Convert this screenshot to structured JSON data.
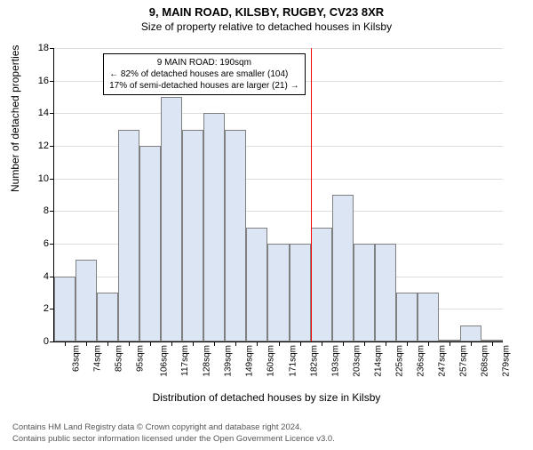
{
  "chart": {
    "type": "histogram",
    "title": "9, MAIN ROAD, KILSBY, RUGBY, CV23 8XR",
    "subtitle": "Size of property relative to detached houses in Kilsby",
    "xlabel": "Distribution of detached houses by size in Kilsby",
    "ylabel": "Number of detached properties",
    "ylim": [
      0,
      18
    ],
    "ytick_step": 2,
    "yticks": [
      0,
      2,
      4,
      6,
      8,
      10,
      12,
      14,
      16,
      18
    ],
    "categories": [
      "63sqm",
      "74sqm",
      "85sqm",
      "95sqm",
      "106sqm",
      "117sqm",
      "128sqm",
      "139sqm",
      "149sqm",
      "160sqm",
      "171sqm",
      "182sqm",
      "193sqm",
      "203sqm",
      "214sqm",
      "225sqm",
      "236sqm",
      "247sqm",
      "257sqm",
      "268sqm",
      "279sqm"
    ],
    "values": [
      4,
      5,
      3,
      13,
      12,
      15,
      13,
      14,
      13,
      7,
      6,
      6,
      7,
      9,
      6,
      6,
      3,
      3,
      0,
      1,
      0
    ],
    "bar_color": "#dbe5f4",
    "bar_border_color": "#808080",
    "background_color": "#ffffff",
    "grid_color": "#dddddd",
    "marker_color": "#ff0000",
    "marker_x_index": 12,
    "info_box": {
      "line1": "9 MAIN ROAD: 190sqm",
      "line2": "← 82% of detached houses are smaller (104)",
      "line3": "17% of semi-detached houses are larger (21) →"
    },
    "axis_fontsize": 11,
    "label_fontsize": 12,
    "title_fontsize": 13
  },
  "footer": {
    "line1": "Contains HM Land Registry data © Crown copyright and database right 2024.",
    "line2": "Contains public sector information licensed under the Open Government Licence v3.0."
  }
}
